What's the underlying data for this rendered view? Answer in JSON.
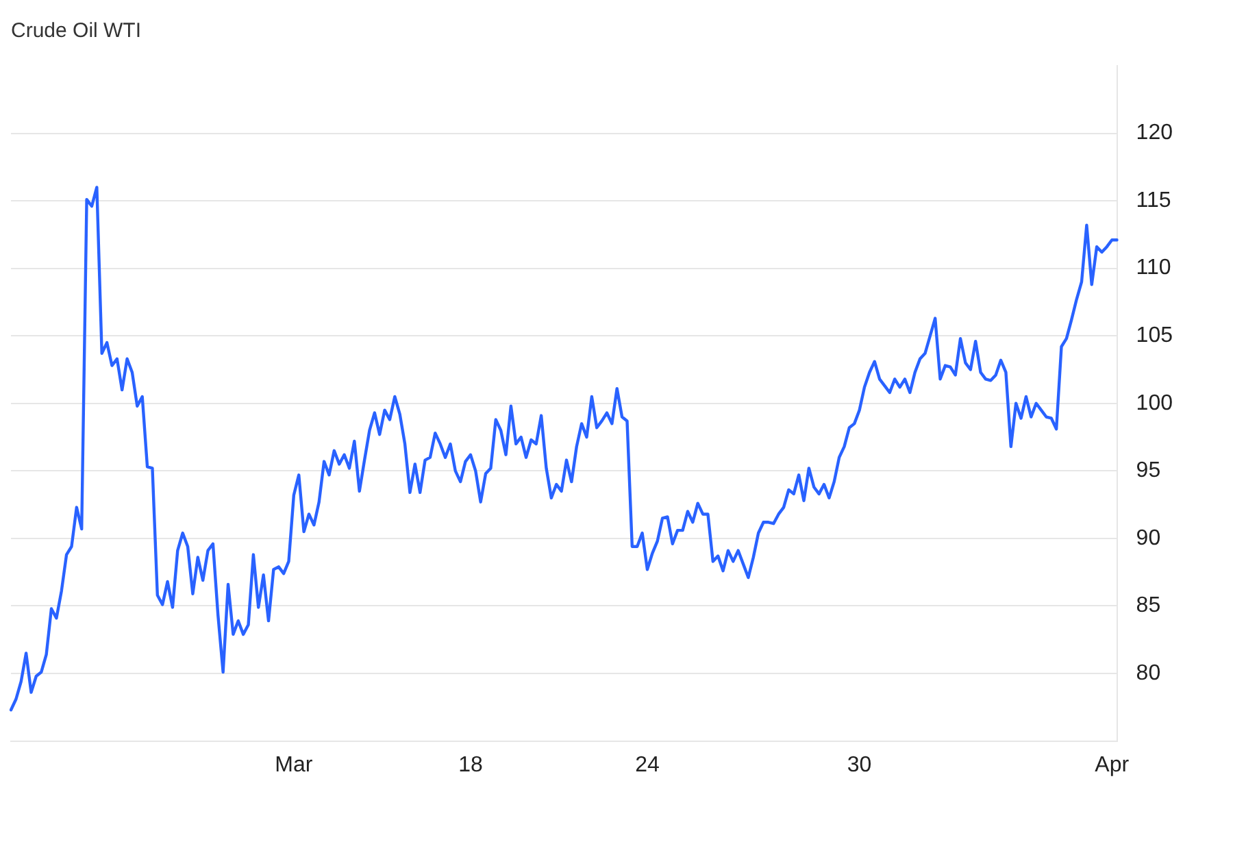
{
  "chart_data": {
    "type": "line",
    "title": "Crude Oil WTI",
    "categories": [
      null,
      null,
      null,
      null,
      null,
      null,
      null,
      null,
      null,
      null,
      null,
      null,
      null,
      null,
      null,
      null,
      null,
      null,
      null,
      null,
      null,
      null,
      null,
      null,
      null,
      null,
      null,
      null,
      null,
      null,
      null,
      null,
      null,
      null,
      null,
      null,
      null,
      null,
      null,
      null,
      null,
      null,
      null,
      null,
      null,
      null,
      null,
      null,
      null,
      null,
      null,
      null,
      null,
      null,
      null,
      null,
      "Mar",
      null,
      null,
      null,
      null,
      null,
      null,
      null,
      null,
      null,
      null,
      null,
      null,
      null,
      null,
      null,
      null,
      null,
      null,
      null,
      null,
      null,
      null,
      null,
      null,
      null,
      null,
      null,
      null,
      null,
      null,
      null,
      null,
      null,
      null,
      "18",
      null,
      null,
      null,
      null,
      null,
      null,
      null,
      null,
      null,
      null,
      null,
      null,
      null,
      null,
      null,
      null,
      null,
      null,
      null,
      null,
      null,
      null,
      null,
      null,
      null,
      null,
      null,
      null,
      null,
      null,
      null,
      null,
      null,
      null,
      "24",
      null,
      null,
      null,
      null,
      null,
      null,
      null,
      null,
      null,
      null,
      null,
      null,
      null,
      null,
      null,
      null,
      null,
      null,
      null,
      null,
      null,
      null,
      null,
      null,
      null,
      null,
      null,
      null,
      null,
      null,
      null,
      null,
      null,
      null,
      null,
      null,
      null,
      null,
      null,
      null,
      null,
      "30",
      null,
      null,
      null,
      null,
      null,
      null,
      null,
      null,
      null,
      null,
      null,
      null,
      null,
      null,
      null,
      null,
      null,
      null,
      null,
      null,
      null,
      null,
      null,
      null,
      null,
      null,
      null,
      null,
      null,
      null,
      null,
      null,
      null,
      null,
      null,
      null,
      null,
      null,
      null,
      null,
      null,
      null,
      null,
      null,
      null,
      null,
      null,
      null,
      null,
      "Apr",
      null
    ],
    "series": [
      {
        "color": "#2962ff",
        "values": [
          77.3,
          78.1,
          79.4,
          81.5,
          78.6,
          79.8,
          80.1,
          81.4,
          84.8,
          84.1,
          86.1,
          88.8,
          89.4,
          92.3,
          90.7,
          115.1,
          114.6,
          116.0,
          103.7,
          104.5,
          102.8,
          103.3,
          101.0,
          103.3,
          102.3,
          99.8,
          100.5,
          95.3,
          95.2,
          85.8,
          85.1,
          86.8,
          84.9,
          89.1,
          90.4,
          89.4,
          85.9,
          88.6,
          86.9,
          89.1,
          89.6,
          84.3,
          80.1,
          86.6,
          82.9,
          83.9,
          82.9,
          83.6,
          88.8,
          84.9,
          87.3,
          83.9,
          87.7,
          87.9,
          87.4,
          88.3,
          93.2,
          94.7,
          90.5,
          91.8,
          91.0,
          92.7,
          95.7,
          94.7,
          96.5,
          95.5,
          96.2,
          95.2,
          97.2,
          93.5,
          95.8,
          98.0,
          99.3,
          97.7,
          99.5,
          98.8,
          100.5,
          99.2,
          97.0,
          93.4,
          95.5,
          93.4,
          95.8,
          96.0,
          97.8,
          97.0,
          96.0,
          97.0,
          95.0,
          94.2,
          95.7,
          96.2,
          95.0,
          92.7,
          94.8,
          95.2,
          98.8,
          98.0,
          96.2,
          99.8,
          97.0,
          97.5,
          96.0,
          97.3,
          97.0,
          99.1,
          95.2,
          93.0,
          94.0,
          93.5,
          95.8,
          94.2,
          96.8,
          98.5,
          97.5,
          100.5,
          98.2,
          98.7,
          99.3,
          98.5,
          101.1,
          99.0,
          98.7,
          89.4,
          89.4,
          90.4,
          87.7,
          88.9,
          89.8,
          91.5,
          91.6,
          89.6,
          90.6,
          90.6,
          92.0,
          91.2,
          92.6,
          91.8,
          91.8,
          88.3,
          88.7,
          87.6,
          89.1,
          88.3,
          89.1,
          88.1,
          87.1,
          88.6,
          90.4,
          91.2,
          91.2,
          91.1,
          91.8,
          92.3,
          93.6,
          93.3,
          94.7,
          92.8,
          95.2,
          93.8,
          93.3,
          94.0,
          93.0,
          94.2,
          96.0,
          96.8,
          98.2,
          98.5,
          99.5,
          101.2,
          102.3,
          103.1,
          101.8,
          101.3,
          100.8,
          101.8,
          101.2,
          101.8,
          100.8,
          102.3,
          103.3,
          103.7,
          105.0,
          106.3,
          101.8,
          102.8,
          102.7,
          102.1,
          104.8,
          103.0,
          102.5,
          104.6,
          102.3,
          101.8,
          101.7,
          102.1,
          103.2,
          102.3,
          96.8,
          100.0,
          98.9,
          100.5,
          99.0,
          100.0,
          99.5,
          99.0,
          98.9,
          98.1,
          104.2,
          104.8,
          106.2,
          107.7,
          109.0,
          113.2,
          108.8,
          111.6,
          111.2,
          111.6,
          112.1,
          112.1
        ]
      }
    ],
    "ylim": [
      75,
      125
    ],
    "yticks": [
      80,
      85,
      90,
      95,
      100,
      105,
      110,
      115,
      120
    ],
    "grid": true,
    "marker": "none"
  }
}
